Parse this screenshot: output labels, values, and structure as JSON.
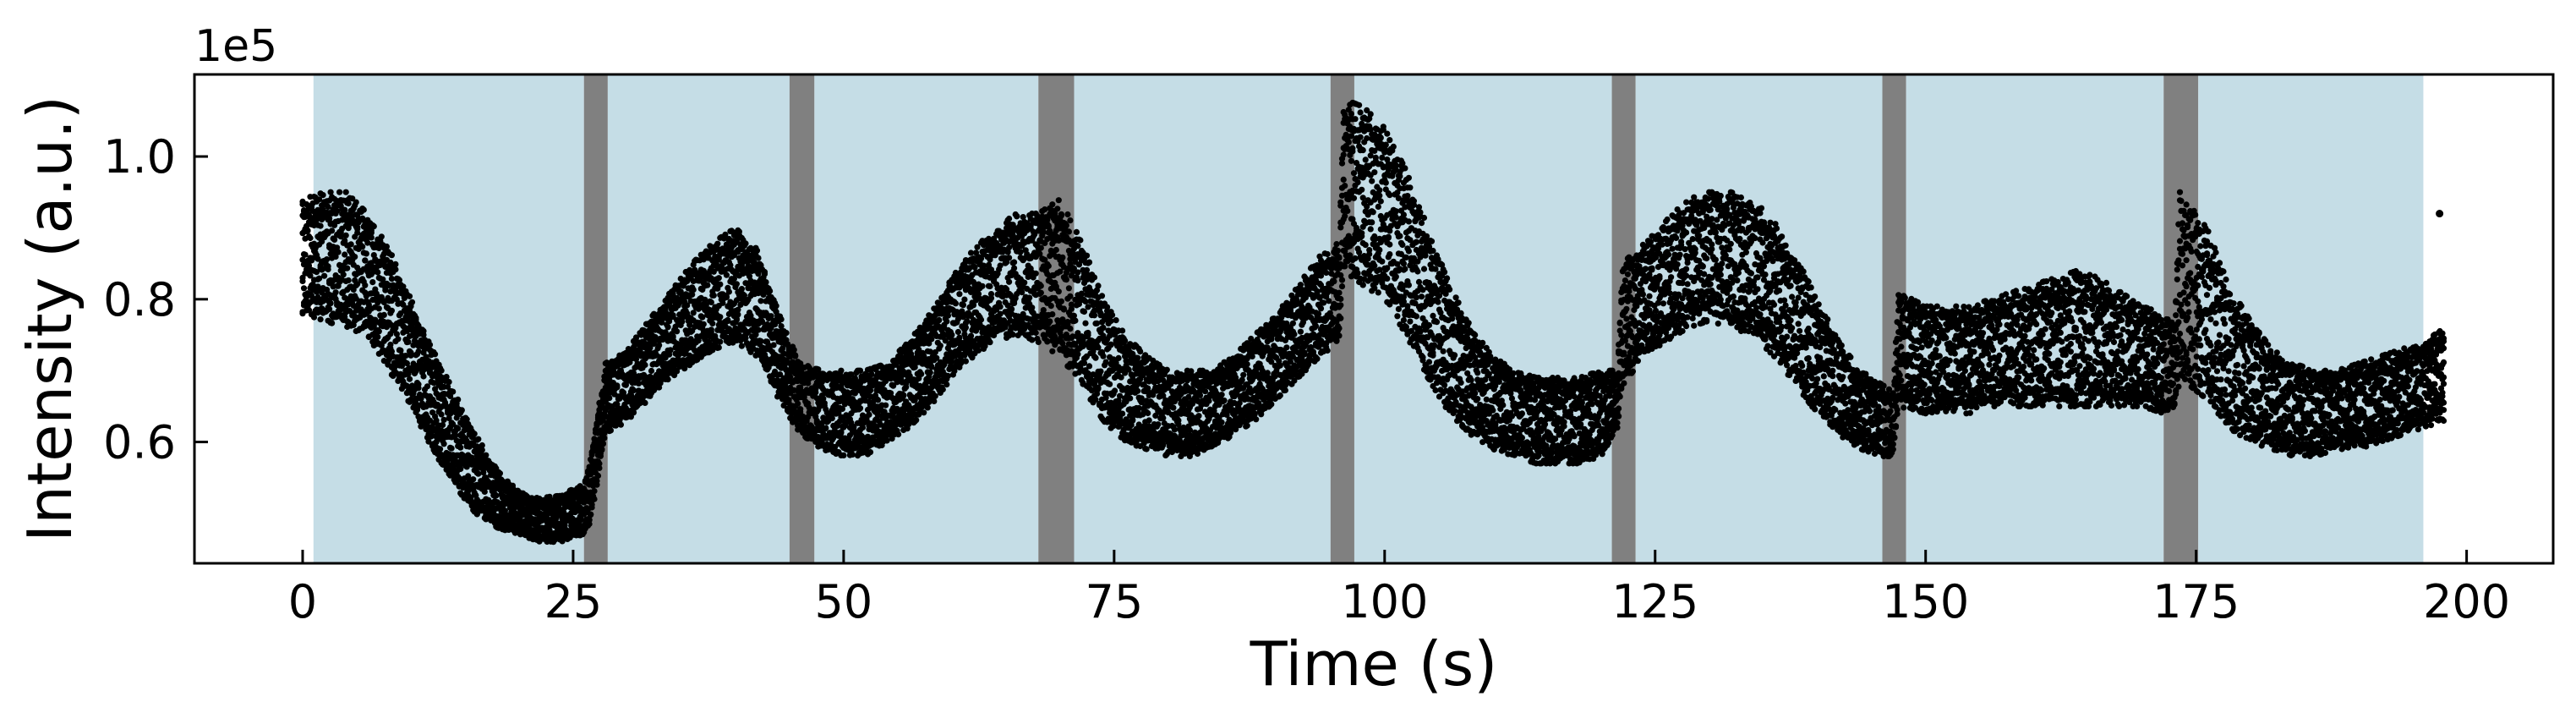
{
  "chart_data": {
    "type": "scatter",
    "title": "",
    "xlabel": "Time (s)",
    "ylabel": "Intensity (a.u.)",
    "y_offset_label": "1e5",
    "y_scale": 100000,
    "xlim": [
      -10,
      208
    ],
    "ylim": [
      0.43,
      1.115
    ],
    "xticks": [
      0,
      25,
      50,
      75,
      100,
      125,
      150,
      175,
      200
    ],
    "xtick_labels": [
      "0",
      "25",
      "50",
      "75",
      "100",
      "125",
      "150",
      "175",
      "200"
    ],
    "yticks": [
      0.6,
      0.8,
      1.0
    ],
    "ytick_labels": [
      "0.6",
      "0.8",
      "1.0"
    ],
    "grid": false,
    "legend": "none",
    "shaded_regions": [
      {
        "kind": "segment",
        "x0": 1.0,
        "x1": 26.0,
        "color": "#c5dde6"
      },
      {
        "kind": "marker",
        "x0": 26.0,
        "x1": 28.2,
        "color": "#808080"
      },
      {
        "kind": "segment",
        "x0": 28.2,
        "x1": 45.0,
        "color": "#c5dde6"
      },
      {
        "kind": "marker",
        "x0": 45.0,
        "x1": 47.3,
        "color": "#808080"
      },
      {
        "kind": "segment",
        "x0": 47.3,
        "x1": 68.0,
        "color": "#c5dde6"
      },
      {
        "kind": "marker",
        "x0": 68.0,
        "x1": 71.3,
        "color": "#808080"
      },
      {
        "kind": "segment",
        "x0": 71.3,
        "x1": 95.0,
        "color": "#c5dde6"
      },
      {
        "kind": "marker",
        "x0": 95.0,
        "x1": 97.2,
        "color": "#808080"
      },
      {
        "kind": "segment",
        "x0": 97.2,
        "x1": 121.0,
        "color": "#c5dde6"
      },
      {
        "kind": "marker",
        "x0": 121.0,
        "x1": 123.2,
        "color": "#808080"
      },
      {
        "kind": "segment",
        "x0": 123.2,
        "x1": 146.0,
        "color": "#c5dde6"
      },
      {
        "kind": "marker",
        "x0": 146.0,
        "x1": 148.2,
        "color": "#808080"
      },
      {
        "kind": "segment",
        "x0": 148.2,
        "x1": 172.0,
        "color": "#c5dde6"
      },
      {
        "kind": "marker",
        "x0": 172.0,
        "x1": 175.2,
        "color": "#808080"
      },
      {
        "kind": "segment",
        "x0": 175.2,
        "x1": 196.0,
        "color": "#c5dde6"
      }
    ],
    "series": [
      {
        "color": "#000000",
        "x": [
          0,
          2,
          4,
          6,
          8,
          10,
          12,
          14,
          16,
          18,
          20,
          22,
          24,
          26,
          26.5,
          28,
          30,
          32,
          34,
          36,
          38,
          40,
          42,
          44,
          46,
          48,
          50,
          52,
          54,
          56,
          58,
          60,
          62,
          64,
          66,
          68,
          70,
          72,
          74,
          76,
          78,
          80,
          82,
          84,
          86,
          88,
          90,
          92,
          94,
          95.8,
          96.2,
          98,
          100,
          102,
          104,
          106,
          108,
          110,
          112,
          114,
          116,
          118,
          120,
          121.5,
          122,
          124,
          126,
          128,
          130,
          132,
          134,
          136,
          138,
          140,
          142,
          144,
          146,
          147,
          147.5,
          150,
          152,
          154,
          156,
          158,
          160,
          162,
          164,
          166,
          168,
          170,
          172,
          173,
          173.5,
          176,
          178,
          180,
          182,
          184,
          186,
          188,
          190,
          192,
          194,
          196,
          198
        ],
        "y_upper": [
          0.94,
          0.95,
          0.95,
          0.92,
          0.87,
          0.8,
          0.73,
          0.67,
          0.61,
          0.56,
          0.53,
          0.52,
          0.53,
          0.54,
          0.57,
          0.71,
          0.73,
          0.77,
          0.81,
          0.85,
          0.88,
          0.9,
          0.87,
          0.78,
          0.71,
          0.7,
          0.7,
          0.7,
          0.71,
          0.74,
          0.78,
          0.83,
          0.87,
          0.9,
          0.92,
          0.92,
          0.94,
          0.88,
          0.8,
          0.75,
          0.72,
          0.7,
          0.7,
          0.7,
          0.72,
          0.75,
          0.78,
          0.82,
          0.86,
          0.88,
          1.08,
          1.07,
          1.04,
          0.98,
          0.9,
          0.82,
          0.76,
          0.72,
          0.7,
          0.69,
          0.69,
          0.69,
          0.7,
          0.7,
          0.85,
          0.88,
          0.91,
          0.94,
          0.95,
          0.95,
          0.94,
          0.91,
          0.86,
          0.8,
          0.74,
          0.7,
          0.68,
          0.67,
          0.81,
          0.79,
          0.79,
          0.79,
          0.8,
          0.81,
          0.82,
          0.83,
          0.84,
          0.83,
          0.81,
          0.79,
          0.78,
          0.77,
          0.95,
          0.9,
          0.82,
          0.77,
          0.73,
          0.71,
          0.7,
          0.7,
          0.71,
          0.72,
          0.73,
          0.74,
          0.76
        ],
        "y_lower": [
          0.78,
          0.77,
          0.76,
          0.75,
          0.7,
          0.65,
          0.59,
          0.54,
          0.5,
          0.48,
          0.47,
          0.46,
          0.46,
          0.47,
          0.48,
          0.61,
          0.63,
          0.66,
          0.69,
          0.71,
          0.73,
          0.74,
          0.72,
          0.66,
          0.61,
          0.59,
          0.58,
          0.58,
          0.6,
          0.62,
          0.65,
          0.69,
          0.72,
          0.74,
          0.75,
          0.74,
          0.72,
          0.68,
          0.63,
          0.6,
          0.59,
          0.58,
          0.58,
          0.59,
          0.61,
          0.63,
          0.66,
          0.69,
          0.72,
          0.74,
          0.84,
          0.82,
          0.8,
          0.75,
          0.69,
          0.64,
          0.61,
          0.59,
          0.58,
          0.57,
          0.57,
          0.57,
          0.58,
          0.62,
          0.68,
          0.72,
          0.74,
          0.76,
          0.77,
          0.76,
          0.75,
          0.72,
          0.68,
          0.64,
          0.61,
          0.59,
          0.58,
          0.58,
          0.65,
          0.64,
          0.64,
          0.64,
          0.65,
          0.65,
          0.65,
          0.65,
          0.65,
          0.65,
          0.65,
          0.65,
          0.64,
          0.64,
          0.69,
          0.66,
          0.62,
          0.6,
          0.59,
          0.58,
          0.58,
          0.59,
          0.59,
          0.6,
          0.61,
          0.62,
          0.63
        ]
      }
    ],
    "outlier_points": [
      {
        "x": 197.5,
        "y": 0.92
      }
    ]
  }
}
